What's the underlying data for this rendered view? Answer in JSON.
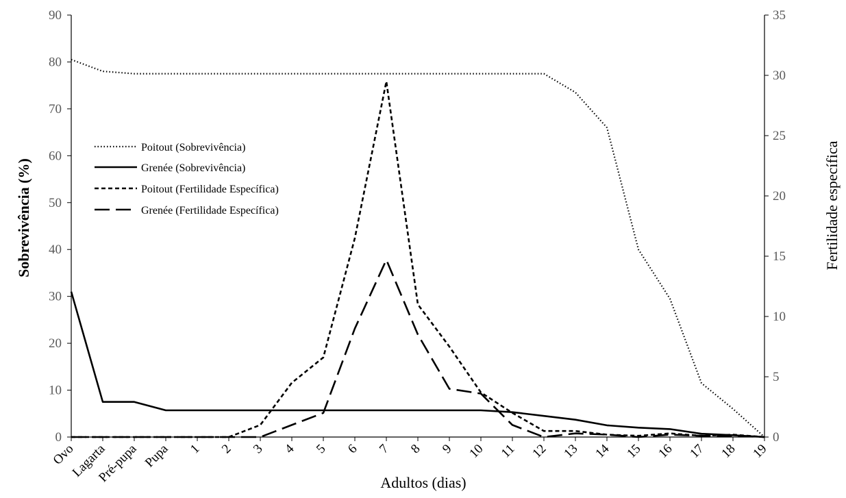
{
  "chart_data": {
    "type": "line",
    "categories": [
      "Ovo",
      "Lagarta",
      "Pré-pupa",
      "Pupa",
      "1",
      "2",
      "3",
      "4",
      "5",
      "6",
      "7",
      "8",
      "9",
      "10",
      "11",
      "12",
      "13",
      "14",
      "15",
      "16",
      "17",
      "18",
      "19"
    ],
    "xlabel": "Adultos (dias)",
    "ylabel_left": "Sobrevivência (%)",
    "ylabel_right": "Fertilidade específica",
    "ylim_left": [
      0,
      90
    ],
    "ylim_right": [
      0,
      35
    ],
    "yticks_left": [
      0,
      10,
      20,
      30,
      40,
      50,
      60,
      70,
      80,
      90
    ],
    "yticks_right": [
      0,
      5,
      10,
      15,
      20,
      25,
      30,
      35
    ],
    "grid": false,
    "legend_placement": "left",
    "series": [
      {
        "name": "Poitout (Sobrevivência)",
        "axis": "left",
        "style": "dotted",
        "values": [
          80.5,
          78,
          77.5,
          77.5,
          77.5,
          77.5,
          77.5,
          77.5,
          77.5,
          77.5,
          77.5,
          77.5,
          77.5,
          77.5,
          77.5,
          77.5,
          73.5,
          66,
          40,
          29.5,
          11.5,
          6,
          0
        ]
      },
      {
        "name": "Grenée (Sobrevivência)",
        "axis": "left",
        "style": "solid",
        "values": [
          31,
          7.5,
          7.5,
          5.7,
          5.7,
          5.7,
          5.7,
          5.7,
          5.7,
          5.7,
          5.7,
          5.7,
          5.7,
          5.7,
          5.3,
          4.5,
          3.7,
          2.5,
          2,
          1.7,
          0.7,
          0.4,
          0
        ]
      },
      {
        "name": "Poitout (Fertilidade Específica)",
        "axis": "right",
        "style": "short-dash",
        "values": [
          0,
          0,
          0,
          0,
          0,
          0,
          1,
          4.5,
          6.6,
          16.5,
          29.5,
          11,
          7.5,
          3.7,
          2,
          0.5,
          0.5,
          0.2,
          0.1,
          0.3,
          0.1,
          0.2,
          0
        ]
      },
      {
        "name": "Grenée (Fertilidade Específica)",
        "axis": "right",
        "style": "long-dash",
        "values": [
          0,
          0,
          0,
          0,
          0,
          0,
          0,
          1,
          2,
          9,
          14.7,
          8.5,
          4,
          3.6,
          1,
          0,
          0.3,
          0.2,
          0,
          0.2,
          0.1,
          0.1,
          0
        ]
      }
    ]
  }
}
